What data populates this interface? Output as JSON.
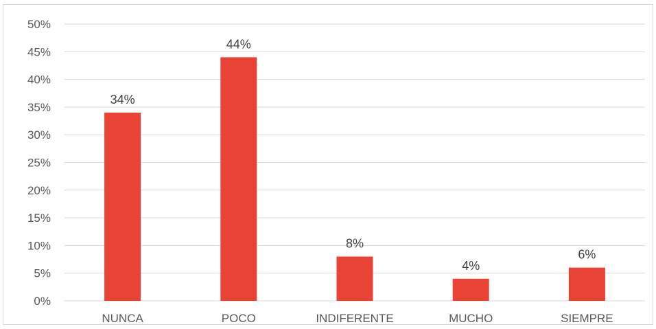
{
  "chart_data": {
    "type": "bar",
    "categories": [
      "NUNCA",
      "POCO",
      "INDIFERENTE",
      "MUCHO",
      "SIEMPRE"
    ],
    "values": [
      34,
      44,
      8,
      4,
      6
    ],
    "data_labels": [
      "34%",
      "44%",
      "8%",
      "4%",
      "6%"
    ],
    "ylim": [
      0,
      50
    ],
    "y_ticks": [
      0,
      5,
      10,
      15,
      20,
      25,
      30,
      35,
      40,
      45,
      50
    ],
    "y_tick_labels": [
      "0%",
      "5%",
      "10%",
      "15%",
      "20%",
      "25%",
      "30%",
      "35%",
      "40%",
      "45%",
      "50%"
    ],
    "grid": true,
    "legend": "none",
    "bar_color": "#e84335",
    "grid_color": "#d9d9d9"
  }
}
